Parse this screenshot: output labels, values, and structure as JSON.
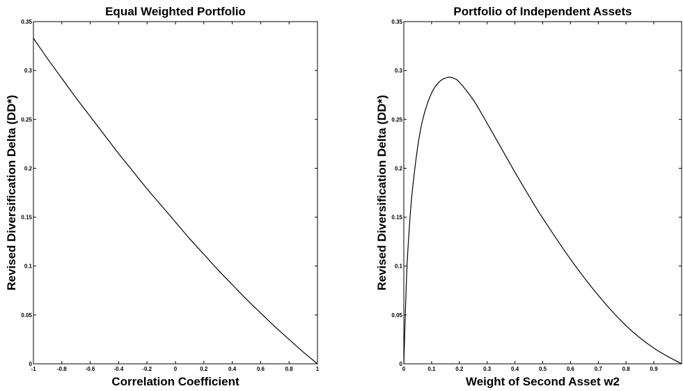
{
  "chart_data": [
    {
      "type": "line",
      "title": "Equal Weighted Portfolio",
      "xlabel": "Correlation Coefficient",
      "ylabel": "Revised Diversification Delta (DD*)",
      "xlim": [
        -1,
        1
      ],
      "ylim": [
        0,
        0.35
      ],
      "xticks": [
        -1,
        -0.8,
        -0.6,
        -0.4,
        -0.2,
        0,
        0.2,
        0.4,
        0.6,
        0.8,
        1
      ],
      "xtick_labels": [
        "-1",
        "-0.8",
        "-0.6",
        "-0.4",
        "-0.2",
        "0",
        "0.2",
        "0.4",
        "0.6",
        "0.8",
        "1"
      ],
      "yticks": [
        0,
        0.05,
        0.1,
        0.15,
        0.2,
        0.25,
        0.3,
        0.35
      ],
      "ytick_labels": [
        "0",
        "0.05",
        "0.1",
        "0.15",
        "0.2",
        "0.25",
        "0.3",
        "0.35"
      ],
      "grid": false,
      "series": [
        {
          "x": [
            -1,
            -0.9,
            -0.8,
            -0.7,
            -0.6,
            -0.5,
            -0.4,
            -0.3,
            -0.2,
            -0.1,
            0,
            0.1,
            0.2,
            0.3,
            0.4,
            0.5,
            0.6,
            0.7,
            0.8,
            0.9,
            1
          ],
          "y": [
            0.333,
            0.312,
            0.292,
            0.272,
            0.253,
            0.234,
            0.215,
            0.197,
            0.179,
            0.162,
            0.145,
            0.128,
            0.112,
            0.096,
            0.081,
            0.066,
            0.052,
            0.038,
            0.025,
            0.012,
            0
          ]
        }
      ]
    },
    {
      "type": "line",
      "title": "Portfolio of Independent Assets",
      "xlabel": "Weight of Second Asset w2",
      "ylabel": "Revised Diversification Delta (DD*)",
      "xlim": [
        0,
        1
      ],
      "ylim": [
        0,
        0.35
      ],
      "xticks": [
        0,
        0.1,
        0.2,
        0.3,
        0.4,
        0.5,
        0.6,
        0.7,
        0.8,
        0.9
      ],
      "xtick_labels": [
        "0",
        "0.1",
        "0.2",
        "0.3",
        "0.4",
        "0.5",
        "0.6",
        "0.7",
        "0.8",
        "0.9"
      ],
      "yticks": [
        0,
        0.05,
        0.1,
        0.15,
        0.2,
        0.25,
        0.3,
        0.35
      ],
      "ytick_labels": [
        "0",
        "0.05",
        "0.1",
        "0.15",
        "0.2",
        "0.25",
        "0.3",
        "0.35"
      ],
      "grid": false,
      "series": [
        {
          "x": [
            0,
            0.01,
            0.02,
            0.03,
            0.05,
            0.07,
            0.1,
            0.13,
            0.16,
            0.18,
            0.2,
            0.25,
            0.3,
            0.35,
            0.4,
            0.45,
            0.5,
            0.6,
            0.7,
            0.8,
            0.9,
            1
          ],
          "y": [
            0,
            0.09,
            0.14,
            0.175,
            0.222,
            0.252,
            0.277,
            0.289,
            0.293,
            0.292,
            0.288,
            0.27,
            0.246,
            0.221,
            0.196,
            0.172,
            0.149,
            0.107,
            0.07,
            0.039,
            0.016,
            0
          ]
        }
      ]
    }
  ]
}
